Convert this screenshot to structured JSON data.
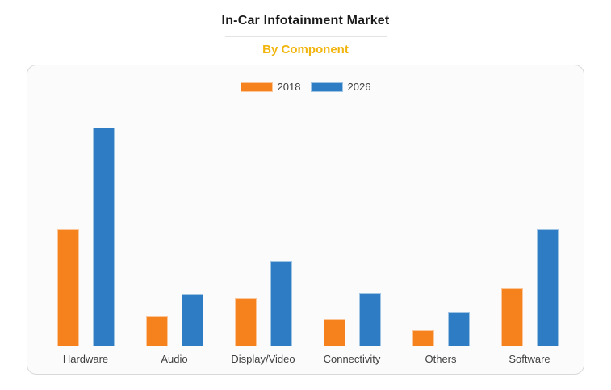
{
  "header": {
    "title": "In-Car Infotainment Market",
    "subtitle": "By Component",
    "title_color": "#1b1b1b",
    "subtitle_color": "#f2b50e"
  },
  "legend": {
    "items": [
      {
        "label": "2018",
        "color": "#f6821d"
      },
      {
        "label": "2026",
        "color": "#2e7cc4"
      }
    ]
  },
  "chart_data": {
    "type": "bar",
    "title": "In-Car Infotainment Market",
    "subtitle": "By Component",
    "categories": [
      "Hardware",
      "Audio",
      "Display/Video",
      "Connectivity",
      "Others",
      "Software"
    ],
    "series": [
      {
        "name": "2018",
        "color": "#f6821d",
        "values": [
          53.5,
          14,
          22,
          12.5,
          7.5,
          26.5
        ]
      },
      {
        "name": "2026",
        "color": "#2e7cc4",
        "values": [
          100,
          24,
          39,
          24.5,
          15.5,
          53.5
        ]
      }
    ],
    "xlabel": "",
    "ylabel": "",
    "ylim": [
      0,
      100
    ],
    "y_axis_visible": false,
    "grid": false,
    "legend_position": "top-center",
    "units": "relative scale (tallest bar = 100; no numeric axis shown in source)"
  }
}
